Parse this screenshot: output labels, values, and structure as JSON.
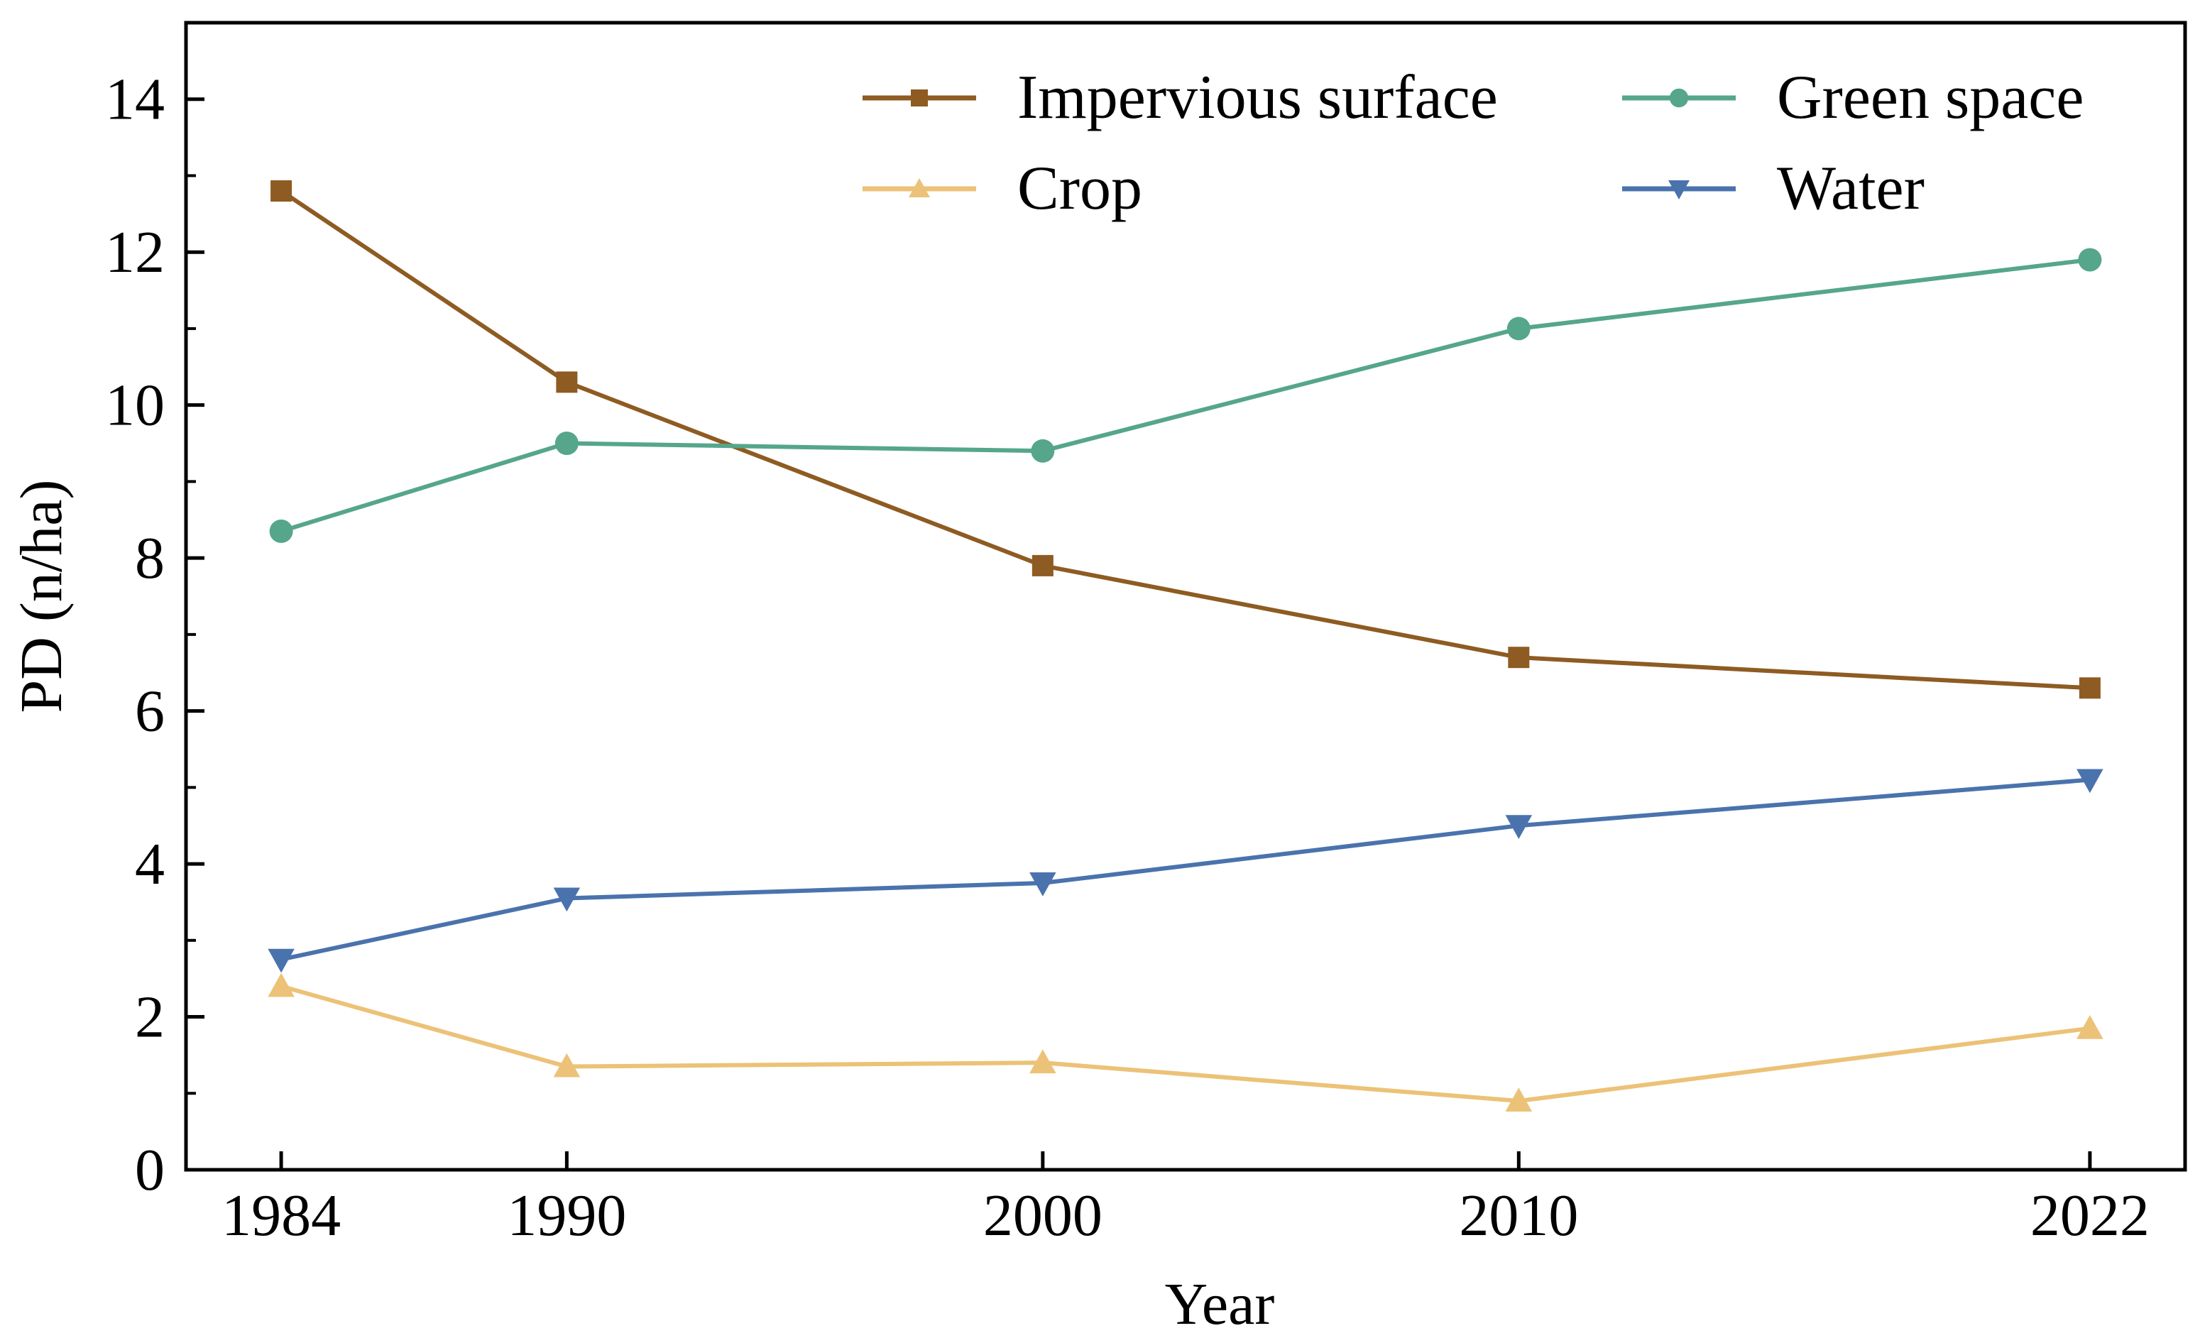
{
  "chart_data": {
    "type": "line",
    "title": "",
    "xlabel": "Year",
    "ylabel": "PD (n/ha)",
    "categories": [
      "1984",
      "1990",
      "2000",
      "2010",
      "2022"
    ],
    "x": [
      1984,
      1990,
      2000,
      2010,
      2022
    ],
    "xlim": [
      1982,
      2024
    ],
    "ylim": [
      0,
      15
    ],
    "yticks": [
      0,
      2,
      4,
      6,
      8,
      10,
      12,
      14
    ],
    "grid": false,
    "legend_position": "top-right",
    "series": [
      {
        "name": "Impervious surface",
        "marker": "square",
        "color": "#8e5b22",
        "values": [
          12.8,
          10.3,
          7.9,
          6.7,
          6.3
        ]
      },
      {
        "name": "Green space",
        "marker": "circle",
        "color": "#55a68a",
        "values": [
          8.35,
          9.5,
          9.4,
          11.0,
          11.9
        ]
      },
      {
        "name": "Crop",
        "marker": "triangle-up",
        "color": "#ecc278",
        "values": [
          2.4,
          1.35,
          1.4,
          0.9,
          1.85
        ]
      },
      {
        "name": "Water",
        "marker": "triangle-down",
        "color": "#4a73ad",
        "values": [
          2.75,
          3.55,
          3.75,
          4.5,
          5.1
        ]
      }
    ]
  }
}
